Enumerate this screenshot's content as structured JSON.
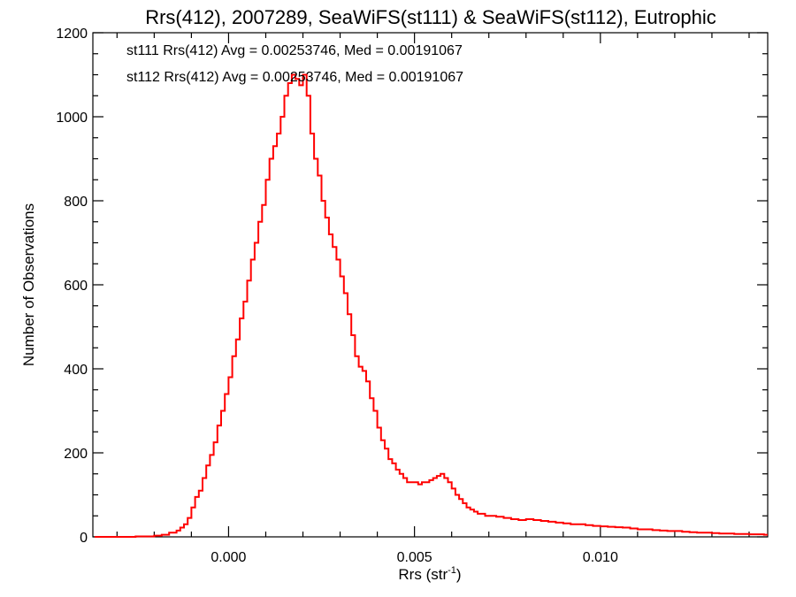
{
  "chart_data": {
    "type": "histogram-step",
    "title": "Rrs(412), 2007289, SeaWiFS(st111) & SeaWiFS(st112), Eutrophic",
    "xlabel_main": "Rrs (str",
    "xlabel_sup": "-1",
    "xlabel_close": ")",
    "ylabel": "Number of Observations",
    "xlim": [
      -0.00365,
      0.0145
    ],
    "ylim": [
      0,
      1200
    ],
    "xticks": [
      0.0,
      0.005,
      0.01
    ],
    "xtick_labels": [
      "0.000",
      "0.005",
      "0.010"
    ],
    "xminor": [
      -0.003,
      -0.002,
      -0.001,
      0.001,
      0.002,
      0.003,
      0.004,
      0.006,
      0.007,
      0.008,
      0.009,
      0.011,
      0.012,
      0.013,
      0.014
    ],
    "yticks": [
      0,
      200,
      400,
      600,
      800,
      1000,
      1200
    ],
    "ytick_labels": [
      "0",
      "200",
      "400",
      "600",
      "800",
      "1000",
      "1200"
    ],
    "yminor": [
      50,
      100,
      150,
      250,
      300,
      350,
      450,
      500,
      550,
      650,
      700,
      750,
      850,
      900,
      950,
      1050,
      1100,
      1150
    ],
    "annotations": [
      {
        "text": "st111 Rrs(412) Avg = 0.00253746, Med = 0.00191067",
        "color": "#000000"
      },
      {
        "text": "st112 Rrs(412) Avg = 0.00253746, Med = 0.00191067",
        "color": "#ff0000"
      }
    ],
    "series": [
      {
        "color": "#ff0000",
        "points": [
          [
            -0.0036,
            0
          ],
          [
            -0.003,
            0
          ],
          [
            -0.0025,
            1
          ],
          [
            -0.002,
            3
          ],
          [
            -0.0018,
            5
          ],
          [
            -0.0016,
            10
          ],
          [
            -0.0014,
            15
          ],
          [
            -0.0013,
            22
          ],
          [
            -0.0012,
            30
          ],
          [
            -0.0011,
            45
          ],
          [
            -0.001,
            70
          ],
          [
            -0.0009,
            95
          ],
          [
            -0.0008,
            110
          ],
          [
            -0.0007,
            140
          ],
          [
            -0.0006,
            170
          ],
          [
            -0.0005,
            195
          ],
          [
            -0.0004,
            225
          ],
          [
            -0.0003,
            265
          ],
          [
            -0.0002,
            300
          ],
          [
            -0.0001,
            340
          ],
          [
            0.0,
            380
          ],
          [
            0.0001,
            430
          ],
          [
            0.0002,
            470
          ],
          [
            0.0003,
            520
          ],
          [
            0.0004,
            560
          ],
          [
            0.0005,
            610
          ],
          [
            0.0006,
            660
          ],
          [
            0.0007,
            700
          ],
          [
            0.0008,
            750
          ],
          [
            0.0009,
            790
          ],
          [
            0.001,
            850
          ],
          [
            0.0011,
            900
          ],
          [
            0.0012,
            930
          ],
          [
            0.0013,
            960
          ],
          [
            0.0014,
            1000
          ],
          [
            0.0015,
            1050
          ],
          [
            0.0016,
            1080
          ],
          [
            0.0017,
            1100
          ],
          [
            0.0018,
            1090
          ],
          [
            0.0019,
            1075
          ],
          [
            0.002,
            1100
          ],
          [
            0.0021,
            1050
          ],
          [
            0.0022,
            960
          ],
          [
            0.0023,
            900
          ],
          [
            0.0024,
            860
          ],
          [
            0.0025,
            800
          ],
          [
            0.0026,
            760
          ],
          [
            0.0027,
            720
          ],
          [
            0.0028,
            690
          ],
          [
            0.0029,
            660
          ],
          [
            0.003,
            620
          ],
          [
            0.0031,
            580
          ],
          [
            0.0032,
            530
          ],
          [
            0.0033,
            480
          ],
          [
            0.0034,
            430
          ],
          [
            0.0035,
            405
          ],
          [
            0.0036,
            395
          ],
          [
            0.0037,
            370
          ],
          [
            0.0038,
            330
          ],
          [
            0.0039,
            300
          ],
          [
            0.004,
            260
          ],
          [
            0.0041,
            230
          ],
          [
            0.0042,
            210
          ],
          [
            0.0043,
            185
          ],
          [
            0.0044,
            175
          ],
          [
            0.0045,
            160
          ],
          [
            0.0046,
            150
          ],
          [
            0.0047,
            140
          ],
          [
            0.0048,
            130
          ],
          [
            0.0049,
            130
          ],
          [
            0.005,
            130
          ],
          [
            0.0051,
            125
          ],
          [
            0.0052,
            130
          ],
          [
            0.0053,
            130
          ],
          [
            0.0054,
            135
          ],
          [
            0.0055,
            140
          ],
          [
            0.0056,
            145
          ],
          [
            0.0057,
            150
          ],
          [
            0.0058,
            140
          ],
          [
            0.0059,
            130
          ],
          [
            0.006,
            115
          ],
          [
            0.0061,
            100
          ],
          [
            0.0062,
            90
          ],
          [
            0.0063,
            80
          ],
          [
            0.0064,
            70
          ],
          [
            0.0065,
            65
          ],
          [
            0.0066,
            60
          ],
          [
            0.0067,
            55
          ],
          [
            0.0068,
            55
          ],
          [
            0.0069,
            50
          ],
          [
            0.007,
            50
          ],
          [
            0.0072,
            48
          ],
          [
            0.0074,
            45
          ],
          [
            0.0076,
            42
          ],
          [
            0.0078,
            40
          ],
          [
            0.008,
            42
          ],
          [
            0.0082,
            40
          ],
          [
            0.0084,
            38
          ],
          [
            0.0086,
            36
          ],
          [
            0.0088,
            34
          ],
          [
            0.009,
            32
          ],
          [
            0.0092,
            30
          ],
          [
            0.0094,
            30
          ],
          [
            0.0096,
            28
          ],
          [
            0.0098,
            26
          ],
          [
            0.01,
            25
          ],
          [
            0.0102,
            24
          ],
          [
            0.0104,
            23
          ],
          [
            0.0106,
            22
          ],
          [
            0.0108,
            20
          ],
          [
            0.011,
            18
          ],
          [
            0.0112,
            18
          ],
          [
            0.0114,
            16
          ],
          [
            0.0116,
            15
          ],
          [
            0.0118,
            14
          ],
          [
            0.012,
            14
          ],
          [
            0.0122,
            12
          ],
          [
            0.0124,
            11
          ],
          [
            0.0126,
            10
          ],
          [
            0.0128,
            10
          ],
          [
            0.013,
            9
          ],
          [
            0.0132,
            8
          ],
          [
            0.0134,
            8
          ],
          [
            0.0136,
            7
          ],
          [
            0.0138,
            7
          ],
          [
            0.014,
            6
          ],
          [
            0.0142,
            6
          ],
          [
            0.0144,
            5
          ]
        ]
      }
    ]
  }
}
